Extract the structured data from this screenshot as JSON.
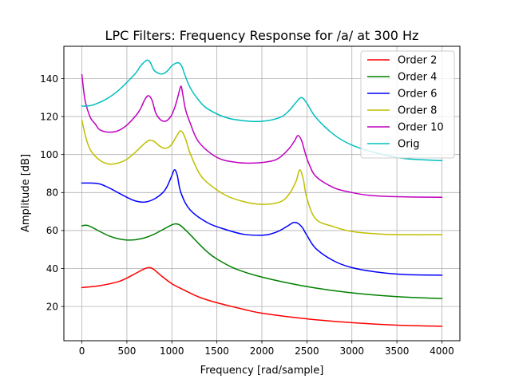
{
  "chart_data": {
    "type": "line",
    "title": "LPC Filters: Frequency Response for /a/ at 300 Hz",
    "xlabel": "Frequency [rad/sample]",
    "ylabel": "Amplitude [dB]",
    "xlim": [
      -200,
      4200
    ],
    "ylim": [
      2,
      157
    ],
    "xticks": [
      0,
      500,
      1000,
      1500,
      2000,
      2500,
      3000,
      3500,
      4000
    ],
    "yticks": [
      20,
      40,
      60,
      80,
      100,
      120,
      140
    ],
    "grid": true,
    "legend_position": "top-right",
    "series": [
      {
        "name": "Order 2",
        "color": "#ff0000",
        "x": [
          0,
          200,
          400,
          500,
          600,
          700,
          750,
          800,
          900,
          1000,
          1100,
          1300,
          1500,
          1800,
          2000,
          2500,
          3000,
          3500,
          4000
        ],
        "y": [
          30,
          31,
          33,
          35,
          37.5,
          40,
          40.5,
          39.5,
          35.5,
          32,
          29.5,
          25,
          22,
          18.5,
          16.5,
          13.5,
          11.5,
          10.2,
          9.6
        ]
      },
      {
        "name": "Order 4",
        "color": "#008000",
        "x": [
          0,
          50,
          100,
          200,
          300,
          400,
          500,
          600,
          700,
          800,
          900,
          1000,
          1050,
          1100,
          1200,
          1300,
          1400,
          1500,
          1700,
          2000,
          2500,
          3000,
          3500,
          4000
        ],
        "y": [
          62.5,
          62.8,
          62,
          59.5,
          57.2,
          55.7,
          55,
          55.2,
          56.2,
          58,
          60.5,
          63,
          63.5,
          62.5,
          58,
          53,
          48.5,
          45,
          40,
          35.5,
          30.5,
          27.2,
          25.2,
          24.2
        ]
      },
      {
        "name": "Order 6",
        "color": "#0000ff",
        "x": [
          0,
          100,
          200,
          300,
          400,
          500,
          600,
          700,
          800,
          900,
          950,
          1000,
          1030,
          1060,
          1100,
          1200,
          1400,
          1600,
          1800,
          2000,
          2100,
          2200,
          2300,
          2350,
          2400,
          2450,
          2500,
          2600,
          2800,
          3000,
          3300,
          3600,
          4000
        ],
        "y": [
          85,
          85,
          84.5,
          82.5,
          80,
          77.5,
          75.5,
          75,
          76.5,
          80,
          83.5,
          89,
          92,
          89,
          80,
          71,
          64,
          60.5,
          58,
          57.5,
          58.2,
          60,
          62.8,
          64.2,
          63.8,
          61.5,
          57.5,
          50.5,
          44,
          40.5,
          38,
          36.8,
          36.5
        ]
      },
      {
        "name": "Order 8",
        "color": "#bfbf00",
        "x": [
          0,
          50,
          100,
          200,
          300,
          400,
          500,
          600,
          700,
          750,
          800,
          850,
          900,
          950,
          1000,
          1050,
          1100,
          1150,
          1200,
          1300,
          1400,
          1600,
          1800,
          2000,
          2200,
          2300,
          2380,
          2420,
          2460,
          2500,
          2600,
          2800,
          3000,
          3300,
          3600,
          4000
        ],
        "y": [
          118,
          108,
          102,
          97,
          95,
          95.5,
          97.5,
          101.5,
          106,
          107.5,
          107,
          105,
          103.5,
          103.5,
          105.5,
          109.5,
          112.5,
          108.5,
          101,
          90.5,
          85,
          78.5,
          75.2,
          73.8,
          75,
          79,
          86,
          92,
          87,
          77,
          66,
          62,
          59.5,
          58.2,
          57.8,
          57.8
        ]
      },
      {
        "name": "Order 10",
        "color": "#bf00bf",
        "x": [
          0,
          30,
          60,
          100,
          150,
          200,
          300,
          400,
          500,
          600,
          650,
          700,
          740,
          780,
          820,
          870,
          920,
          960,
          1000,
          1040,
          1070,
          1100,
          1120,
          1150,
          1200,
          1300,
          1500,
          1700,
          1900,
          2100,
          2200,
          2300,
          2360,
          2400,
          2440,
          2480,
          2520,
          2600,
          2800,
          3000,
          3200,
          3500,
          4000
        ],
        "y": [
          142,
          130,
          124,
          119,
          116,
          113,
          111.8,
          112.5,
          115.5,
          120.5,
          124,
          129,
          131,
          128.5,
          122,
          118.5,
          117.5,
          118.5,
          121,
          126,
          131,
          136,
          132,
          124,
          117,
          106.5,
          98.5,
          96,
          95.5,
          96.5,
          98.5,
          103,
          107,
          110,
          107.5,
          101,
          95.5,
          88.5,
          82.5,
          80,
          78.5,
          77.8,
          77.5
        ]
      },
      {
        "name": "Orig",
        "color": "#00bfbf",
        "x": [
          0,
          100,
          200,
          300,
          400,
          500,
          600,
          650,
          700,
          730,
          760,
          800,
          850,
          900,
          950,
          1000,
          1050,
          1080,
          1110,
          1140,
          1200,
          1300,
          1400,
          1600,
          1800,
          2000,
          2200,
          2300,
          2380,
          2440,
          2500,
          2600,
          2800,
          3000,
          3300,
          3600,
          4000
        ],
        "y": [
          125.5,
          125.8,
          127.5,
          130,
          133.5,
          138,
          143,
          146.5,
          149,
          149.7,
          148.5,
          144.5,
          142.8,
          142.5,
          144,
          146.8,
          148.2,
          148.2,
          146.5,
          142.5,
          135.5,
          128.5,
          124,
          119.5,
          117.8,
          117.5,
          119.5,
          123,
          127.5,
          130,
          127,
          119.5,
          110.5,
          105,
          100.5,
          97.8,
          96.8
        ]
      }
    ]
  }
}
